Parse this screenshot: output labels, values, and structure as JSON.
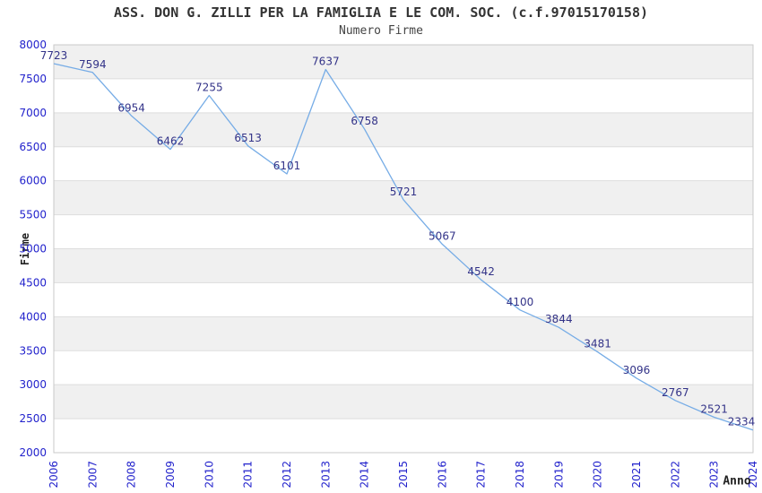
{
  "chart_data": {
    "type": "line",
    "title": "ASS. DON G. ZILLI PER LA FAMIGLIA E LE COM. SOC. (c.f.97015170158)",
    "subtitle": "Numero Firme",
    "xlabel": "Anno",
    "ylabel": "Firme",
    "x": [
      "2006",
      "2007",
      "2008",
      "2009",
      "2010",
      "2011",
      "2012",
      "2013",
      "2014",
      "2015",
      "2016",
      "2017",
      "2018",
      "2019",
      "2020",
      "2021",
      "2022",
      "2023",
      "2024"
    ],
    "values": [
      7723,
      7594,
      6954,
      6462,
      7255,
      6513,
      6101,
      7637,
      6758,
      5721,
      5067,
      4542,
      4100,
      3844,
      3481,
      3096,
      2767,
      2521,
      2334
    ],
    "ylim": [
      2000,
      8000
    ],
    "yticks": [
      8000,
      7500,
      7000,
      6500,
      6000,
      5500,
      5000,
      4500,
      4000,
      3500,
      3000,
      2500,
      2000
    ],
    "grid": true,
    "legend": "none",
    "data_labels_visible": true,
    "colors": {
      "line": "#76ace6",
      "data_label": "#333388",
      "tick_label": "#2222cc",
      "band": "#f0f0f0",
      "gridline": "#dddddd",
      "border": "#c9c9c9",
      "title": "#333333",
      "subtitle": "#444444",
      "axis_title": "#222222",
      "background": "#ffffff"
    }
  }
}
